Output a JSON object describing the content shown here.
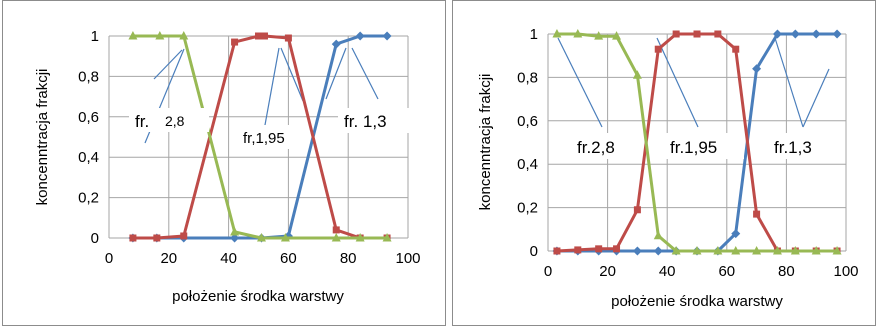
{
  "chart_data": [
    {
      "type": "line",
      "xlabel": "położenie środka warstwy",
      "ylabel": "koncenntracja frakcji",
      "xlim": [
        0,
        100
      ],
      "ylim": [
        0,
        1
      ],
      "xticks": [
        "0",
        "20",
        "40",
        "60",
        "80",
        "100"
      ],
      "yticks": [
        "0",
        "0,2",
        "0,4",
        "0,6",
        "0,8",
        "1"
      ],
      "grid": true,
      "colors": {
        "blue": "#4a7ebb",
        "red": "#be4b48",
        "green": "#98b954"
      },
      "series": [
        {
          "name": "fr. 1,3",
          "color": "blue",
          "marker": "diamond",
          "points": [
            [
              8,
              0
            ],
            [
              16,
              0
            ],
            [
              25,
              0
            ],
            [
              42,
              0
            ],
            [
              51,
              0
            ],
            [
              60,
              0.01
            ],
            [
              76,
              0.96
            ],
            [
              84,
              1.0
            ],
            [
              93,
              1.0
            ]
          ]
        },
        {
          "name": "fr,1,95",
          "color": "red",
          "marker": "square",
          "points": [
            [
              8,
              0
            ],
            [
              16,
              0
            ],
            [
              25,
              0.01
            ],
            [
              42,
              0.97
            ],
            [
              50,
              1.0
            ],
            [
              52,
              1.0
            ],
            [
              60,
              0.99
            ],
            [
              76,
              0.04
            ],
            [
              84,
              0
            ],
            [
              93,
              0
            ]
          ]
        },
        {
          "name": "fr. 2,8",
          "color": "green",
          "marker": "triangle",
          "points": [
            [
              8,
              1.0
            ],
            [
              17,
              1.0
            ],
            [
              25,
              1.0
            ],
            [
              42,
              0.03
            ],
            [
              51,
              0
            ],
            [
              59,
              0
            ],
            [
              76,
              0
            ],
            [
              84,
              0
            ],
            [
              93,
              0
            ]
          ]
        }
      ],
      "annotations": [
        {
          "text": "fr. 2,8",
          "parts": [
            "fr.",
            "2,8"
          ]
        },
        {
          "text": "fr,1,95"
        },
        {
          "text": "fr. 1,3"
        }
      ]
    },
    {
      "type": "line",
      "xlabel": "położenie środka warstwy",
      "ylabel": "koncenntracja frakcji",
      "xlim": [
        0,
        100
      ],
      "ylim": [
        0,
        1
      ],
      "xticks": [
        "0",
        "20",
        "40",
        "60",
        "80",
        "100"
      ],
      "yticks": [
        "0",
        "0,2",
        "0,4",
        "0,6",
        "0,8",
        "1"
      ],
      "grid": true,
      "colors": {
        "blue": "#4a7ebb",
        "red": "#be4b48",
        "green": "#98b954"
      },
      "series": [
        {
          "name": "fr.1,3",
          "color": "blue",
          "marker": "diamond",
          "points": [
            [
              3,
              0
            ],
            [
              10,
              0
            ],
            [
              17,
              0
            ],
            [
              23,
              0
            ],
            [
              30,
              0
            ],
            [
              37,
              0
            ],
            [
              43,
              0
            ],
            [
              50,
              0
            ],
            [
              57,
              0
            ],
            [
              63,
              0.08
            ],
            [
              70,
              0.84
            ],
            [
              77,
              1.0
            ],
            [
              83,
              1.0
            ],
            [
              90,
              1.0
            ],
            [
              97,
              1.0
            ]
          ]
        },
        {
          "name": "fr.1,95",
          "color": "red",
          "marker": "square",
          "points": [
            [
              3,
              0
            ],
            [
              10,
              0.005
            ],
            [
              17,
              0.01
            ],
            [
              23,
              0.01
            ],
            [
              30,
              0.19
            ],
            [
              37,
              0.93
            ],
            [
              43,
              1.0
            ],
            [
              50,
              1.0
            ],
            [
              57,
              1.0
            ],
            [
              63,
              0.93
            ],
            [
              70,
              0.17
            ],
            [
              77,
              0
            ],
            [
              83,
              0
            ],
            [
              90,
              0
            ],
            [
              97,
              0
            ]
          ]
        },
        {
          "name": "fr.2,8",
          "color": "green",
          "marker": "triangle",
          "points": [
            [
              3,
              1.0
            ],
            [
              10,
              1.0
            ],
            [
              17,
              0.99
            ],
            [
              23,
              0.99
            ],
            [
              30,
              0.81
            ],
            [
              37,
              0.07
            ],
            [
              43,
              0
            ],
            [
              50,
              0
            ],
            [
              57,
              0
            ],
            [
              63,
              0
            ],
            [
              70,
              0
            ],
            [
              77,
              0
            ],
            [
              83,
              0
            ],
            [
              90,
              0
            ],
            [
              97,
              0
            ]
          ]
        }
      ],
      "annotations": [
        {
          "text": "fr.2,8"
        },
        {
          "text": "fr.1,95"
        },
        {
          "text": "fr.1,3"
        }
      ]
    }
  ]
}
